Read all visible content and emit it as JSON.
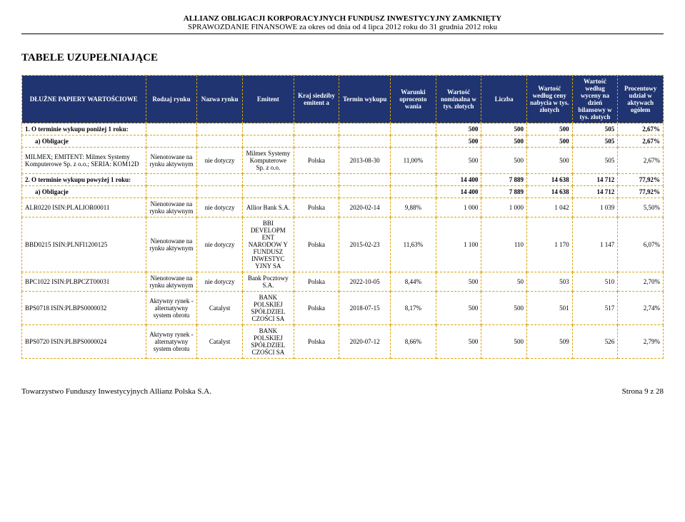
{
  "header": {
    "title": "ALLIANZ OBLIGACJI KORPORACYJNYCH FUNDUSZ INWESTYCYJNY ZAMKNIĘTY",
    "subtitle": "SPRAWOZDANIE FINANSOWE za okres od dnia od 4 lipca 2012 roku do 31 grudnia 2012 roku"
  },
  "section_title": "TABELE UZUPEŁNIAJĄCE",
  "columns": [
    "DŁUŻNE PAPIERY WARTOŚCIOWE",
    "Rodzaj rynku",
    "Nazwa rynku",
    "Emitent",
    "Kraj siedziby emitent a",
    "Termin wykupu",
    "Warunki oprocento wania",
    "Wartość nominalna w tys. złotych",
    "Liczba",
    "Wartość według ceny nabycia w tys. złotych",
    "Wartość według wyceny na dzień bilansowy w tys. złotych",
    "Procentowy udział w aktywach ogółem"
  ],
  "rows": [
    {
      "type": "group",
      "cells": [
        "1. O terminie wykupu poniżej 1 roku:",
        "",
        "",
        "",
        "",
        "",
        "",
        "500",
        "500",
        "500",
        "505",
        "2,67%"
      ]
    },
    {
      "type": "sub",
      "cells": [
        "a) Obligacje",
        "",
        "",
        "",
        "",
        "",
        "",
        "500",
        "500",
        "500",
        "505",
        "2,67%"
      ]
    },
    {
      "type": "data",
      "cells": [
        "MILMEX; EMITENT: Milmex Systemy Komputerowe Sp. z o.o.; SERIA: KOM12D",
        "Nienotowane na rynku aktywnym",
        "nie dotyczy",
        "Milmex Systemy Komputerowe Sp. z o.o.",
        "Polska",
        "2013-08-30",
        "11,00%",
        "500",
        "500",
        "500",
        "505",
        "2,67%"
      ]
    },
    {
      "type": "group",
      "cells": [
        "2. O terminie wykupu powyżej 1 roku:",
        "",
        "",
        "",
        "",
        "",
        "",
        "14 400",
        "7 889",
        "14 638",
        "14 712",
        "77,92%"
      ]
    },
    {
      "type": "sub",
      "cells": [
        "a) Obligacje",
        "",
        "",
        "",
        "",
        "",
        "",
        "14 400",
        "7 889",
        "14 638",
        "14 712",
        "77,92%"
      ]
    },
    {
      "type": "data",
      "cells": [
        "ALR0220 ISIN:PLALIOR00011",
        "Nienotowane na rynku aktywnym",
        "nie dotyczy",
        "Allior Bank S.A.",
        "Polska",
        "2020-02-14",
        "9,88%",
        "1 000",
        "1 000",
        "1 042",
        "1 039",
        "5,50%"
      ]
    },
    {
      "type": "data",
      "cells": [
        "BBD0215 ISIN:PLNFI1200125",
        "Nienotowane na rynku aktywnym",
        "nie dotyczy",
        "BBI DEVELOPM ENT NARODOW Y FUNDUSZ INWESTYC YJNY SA",
        "Polska",
        "2015-02-23",
        "11,63%",
        "1 100",
        "110",
        "1 170",
        "1 147",
        "6,07%"
      ]
    },
    {
      "type": "data",
      "cells": [
        "BPC1022 ISIN:PLBPCZT00031",
        "Nienotowane na rynku aktywnym",
        "nie dotyczy",
        "Bank Pocztowy S.A.",
        "Polska",
        "2022-10-05",
        "8,44%",
        "500",
        "50",
        "503",
        "510",
        "2,70%"
      ]
    },
    {
      "type": "data",
      "cells": [
        "BPS0718 ISIN:PLBPS0000032",
        "Aktywny rynek - alternatywny system obrotu",
        "Catalyst",
        "BANK POLSKIEJ SPÓŁDZIEL CZOŚCI SA",
        "Polska",
        "2018-07-15",
        "8,17%",
        "500",
        "500",
        "501",
        "517",
        "2,74%"
      ]
    },
    {
      "type": "data",
      "cells": [
        "BPS0720 ISIN:PLBPS0000024",
        "Aktywny rynek - alternatywny system obrotu",
        "Catalyst",
        "BANK POLSKIEJ SPÓŁDZIEL CZOŚCI SA",
        "Polska",
        "2020-07-12",
        "8,66%",
        "500",
        "500",
        "509",
        "526",
        "2,79%"
      ]
    }
  ],
  "footer": {
    "left": "Towarzystwo Funduszy Inwestycyjnych Allianz Polska S.A.",
    "right": "Strona 9 z 28"
  },
  "style": {
    "header_bg": "#1f3470",
    "header_fg": "#ffffff",
    "border_color": "#d9a300",
    "numeric_cols": [
      7,
      8,
      9,
      10,
      11
    ],
    "center_cols": [
      1,
      2,
      3,
      4,
      5,
      6
    ]
  }
}
